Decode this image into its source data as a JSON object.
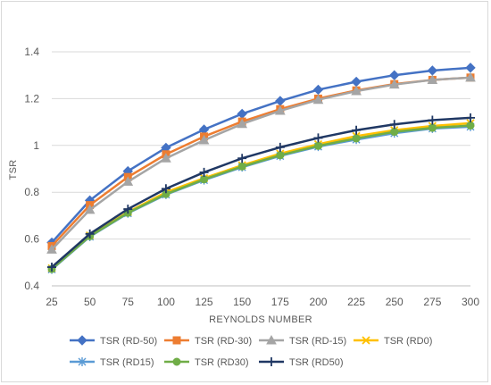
{
  "chart_data": {
    "type": "line",
    "title": "",
    "xlabel": "REYNOLDS NUMBER",
    "ylabel": "TSR",
    "x": [
      25,
      50,
      75,
      100,
      125,
      150,
      175,
      200,
      225,
      250,
      275,
      300
    ],
    "xticks": [
      "25",
      "50",
      "75",
      "100",
      "125",
      "150",
      "175",
      "200",
      "225",
      "250",
      "275",
      "300"
    ],
    "ylim": [
      0.4,
      1.4
    ],
    "yticks": [
      "0.4",
      "0.6",
      "0.8",
      "1",
      "1.2",
      "1.4"
    ],
    "grid": "horizontal",
    "legend_position": "bottom",
    "series": [
      {
        "name": "TSR (RD-50)",
        "color": "#4472c4",
        "marker": "diamond",
        "values": [
          0.585,
          0.765,
          0.89,
          0.99,
          1.068,
          1.135,
          1.19,
          1.238,
          1.272,
          1.3,
          1.32,
          1.332
        ]
      },
      {
        "name": "TSR (RD-30)",
        "color": "#ed7d31",
        "marker": "square",
        "values": [
          0.57,
          0.745,
          0.865,
          0.962,
          1.038,
          1.102,
          1.155,
          1.2,
          1.235,
          1.262,
          1.28,
          1.29
        ]
      },
      {
        "name": "TSR (RD-15)",
        "color": "#a5a5a5",
        "marker": "triangle",
        "values": [
          0.555,
          0.725,
          0.845,
          0.945,
          1.022,
          1.092,
          1.148,
          1.195,
          1.232,
          1.26,
          1.28,
          1.29
        ]
      },
      {
        "name": "TSR (RD0)",
        "color": "#ffc000",
        "marker": "x",
        "values": [
          0.475,
          0.615,
          0.715,
          0.8,
          0.86,
          0.915,
          0.965,
          1.005,
          1.04,
          1.065,
          1.083,
          1.095
        ]
      },
      {
        "name": "TSR (RD15)",
        "color": "#5b9bd5",
        "marker": "star",
        "values": [
          0.47,
          0.61,
          0.71,
          0.79,
          0.852,
          0.907,
          0.955,
          0.995,
          1.025,
          1.052,
          1.072,
          1.08
        ]
      },
      {
        "name": "TSR (RD30)",
        "color": "#70ad47",
        "marker": "circle",
        "values": [
          0.472,
          0.612,
          0.712,
          0.792,
          0.855,
          0.91,
          0.958,
          0.998,
          1.03,
          1.058,
          1.075,
          1.085
        ]
      },
      {
        "name": "TSR (RD50)",
        "color": "#203864",
        "marker": "plus",
        "values": [
          0.48,
          0.622,
          0.728,
          0.815,
          0.885,
          0.945,
          0.992,
          1.032,
          1.065,
          1.09,
          1.108,
          1.118
        ]
      }
    ]
  }
}
